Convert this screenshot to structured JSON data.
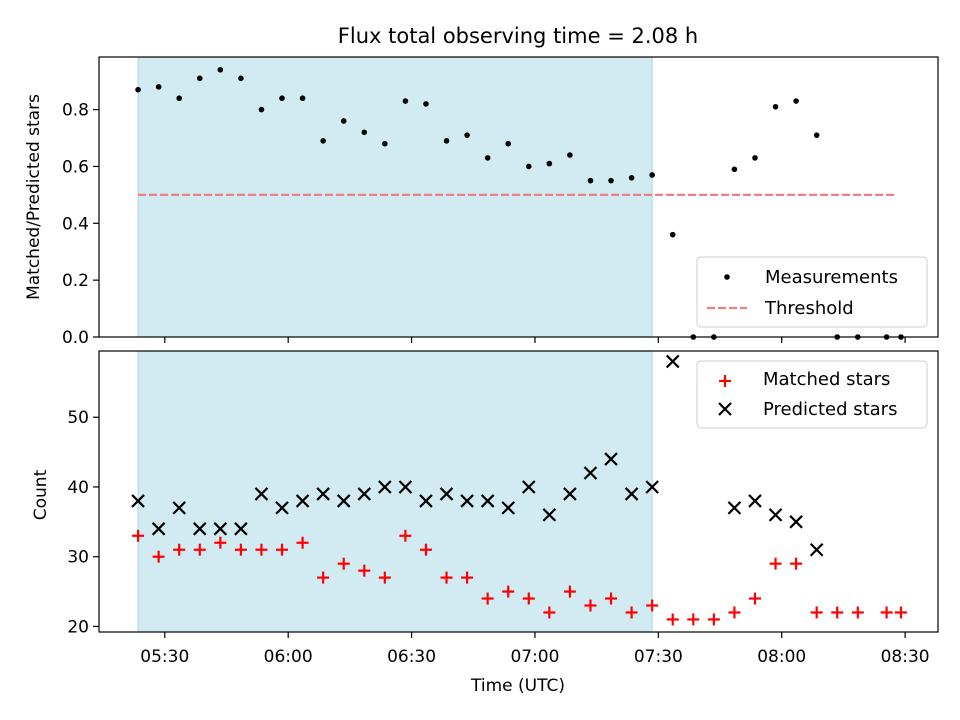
{
  "title": "Flux total observing time = 2.08 h",
  "chart_data": [
    {
      "type": "scatter",
      "panel": "top",
      "title": "Flux total observing time = 2.08 h",
      "xlabel": "",
      "ylabel": "Matched/Predicted stars",
      "xlim_minutes": [
        314,
        518
      ],
      "ylim": [
        0,
        0.985
      ],
      "yticks": [
        0.0,
        0.2,
        0.4,
        0.6,
        0.8
      ],
      "ytick_labels": [
        "0.0",
        "0.2",
        "0.4",
        "0.6",
        "0.8"
      ],
      "shaded_span_minutes": [
        323.5,
        448.5
      ],
      "shaded_color": "#add8e6",
      "series": [
        {
          "name": "Measurements",
          "marker": "dot",
          "color": "#000000",
          "x_minutes": [
            323.5,
            328.5,
            333.5,
            338.5,
            343.5,
            348.5,
            353.5,
            358.5,
            363.5,
            368.5,
            373.5,
            378.5,
            383.5,
            388.5,
            393.5,
            398.5,
            403.5,
            408.5,
            413.5,
            418.5,
            423.5,
            428.5,
            433.5,
            438.5,
            443.5,
            448.5,
            453.5,
            458.5,
            463.5,
            468.5,
            473.5,
            478.5,
            483.5,
            488.5,
            493.5,
            498.5,
            505.5,
            509
          ],
          "values": [
            0.87,
            0.88,
            0.84,
            0.91,
            0.94,
            0.91,
            0.8,
            0.84,
            0.84,
            0.69,
            0.76,
            0.72,
            0.68,
            0.83,
            0.82,
            0.69,
            0.71,
            0.63,
            0.68,
            0.6,
            0.61,
            0.64,
            0.55,
            0.55,
            0.56,
            0.57,
            0.36,
            0.0,
            0.0,
            0.59,
            0.63,
            0.81,
            0.83,
            0.71,
            0.0,
            0.0,
            0.0,
            0.0
          ]
        },
        {
          "name": "Threshold",
          "marker": "dashed-line",
          "color": "#f08080",
          "x_minutes": [
            323.5,
            508
          ],
          "values": [
            0.5,
            0.5
          ]
        }
      ],
      "legend": {
        "position": "lower-right",
        "entries": [
          "Measurements",
          "Threshold"
        ]
      }
    },
    {
      "type": "scatter",
      "panel": "bottom",
      "xlabel": "Time (UTC)",
      "ylabel": "Count",
      "xlim_minutes": [
        314,
        518
      ],
      "ylim": [
        19.2,
        59.5
      ],
      "yticks": [
        20,
        30,
        40,
        50
      ],
      "ytick_labels": [
        "20",
        "30",
        "40",
        "50"
      ],
      "xticks_minutes": [
        330,
        360,
        390,
        420,
        450,
        480,
        510
      ],
      "xtick_labels": [
        "05:30",
        "06:00",
        "06:30",
        "07:00",
        "07:30",
        "08:00",
        "08:30"
      ],
      "shaded_span_minutes": [
        323.5,
        448.5
      ],
      "shaded_color": "#add8e6",
      "series": [
        {
          "name": "Matched stars",
          "marker": "plus",
          "color": "#ff0000",
          "x_minutes": [
            323.5,
            328.5,
            333.5,
            338.5,
            343.5,
            348.5,
            353.5,
            358.5,
            363.5,
            368.5,
            373.5,
            378.5,
            383.5,
            388.5,
            393.5,
            398.5,
            403.5,
            408.5,
            413.5,
            418.5,
            423.5,
            428.5,
            433.5,
            438.5,
            443.5,
            448.5,
            453.5,
            458.5,
            463.5,
            468.5,
            473.5,
            478.5,
            483.5,
            488.5,
            493.5,
            498.5,
            505.5,
            509
          ],
          "values": [
            33,
            30,
            31,
            31,
            32,
            31,
            31,
            31,
            32,
            27,
            29,
            28,
            27,
            33,
            31,
            27,
            27,
            24,
            25,
            24,
            22,
            25,
            23,
            24,
            22,
            23,
            21,
            21,
            21,
            22,
            24,
            29,
            29,
            22,
            22,
            22,
            22,
            22
          ]
        },
        {
          "name": "Predicted stars",
          "marker": "x",
          "color": "#000000",
          "x_minutes": [
            323.5,
            328.5,
            333.5,
            338.5,
            343.5,
            348.5,
            353.5,
            358.5,
            363.5,
            368.5,
            373.5,
            378.5,
            383.5,
            388.5,
            393.5,
            398.5,
            403.5,
            408.5,
            413.5,
            418.5,
            423.5,
            428.5,
            433.5,
            438.5,
            443.5,
            448.5,
            453.5,
            468.5,
            473.5,
            478.5,
            483.5,
            488.5
          ],
          "values": [
            38,
            34,
            37,
            34,
            34,
            34,
            39,
            37,
            38,
            39,
            38,
            39,
            40,
            40,
            38,
            39,
            38,
            38,
            37,
            40,
            36,
            39,
            42,
            44,
            39,
            40,
            58,
            37,
            38,
            36,
            35,
            31
          ]
        }
      ],
      "legend": {
        "position": "upper-right",
        "entries": [
          "Matched stars",
          "Predicted stars"
        ]
      }
    }
  ]
}
